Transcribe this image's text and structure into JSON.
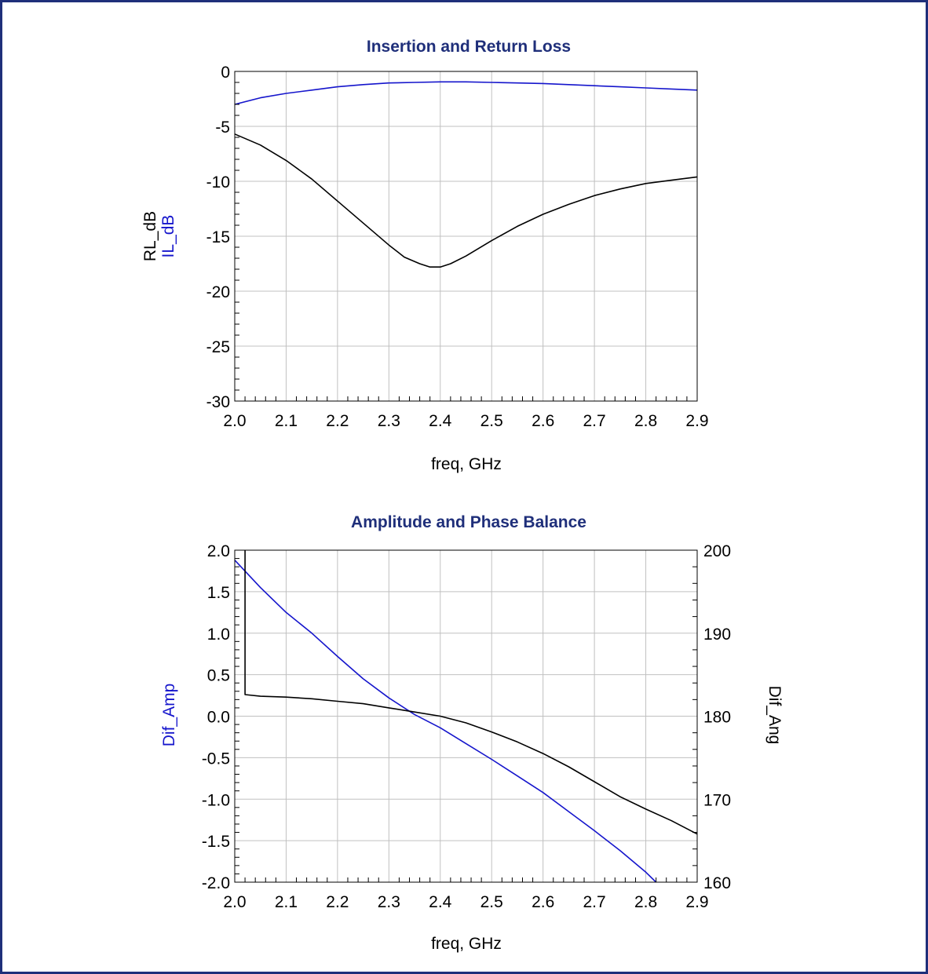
{
  "colors": {
    "frame": "#1f2f7a",
    "title": "#1f2f7a",
    "blue": "#1515cc",
    "black": "#000000",
    "grid": "#c0c0c0"
  },
  "chart_data": [
    {
      "type": "line",
      "title": "Insertion and Return Loss",
      "xlabel": "freq, GHz",
      "ylabels": [
        "RL_dB",
        "IL_dB"
      ],
      "xlim": [
        2.0,
        2.9
      ],
      "ylim": [
        -30,
        0
      ],
      "xticks": [
        "2.0",
        "2.1",
        "2.2",
        "2.3",
        "2.4",
        "2.5",
        "2.6",
        "2.7",
        "2.8",
        "2.9"
      ],
      "yticks": [
        "0",
        "-5",
        "-10",
        "-15",
        "-20",
        "-25",
        "-30"
      ],
      "grid": true,
      "series": [
        {
          "name": "IL_dB",
          "color": "#1515cc",
          "x": [
            2.0,
            2.05,
            2.1,
            2.15,
            2.2,
            2.25,
            2.3,
            2.35,
            2.4,
            2.45,
            2.5,
            2.55,
            2.6,
            2.65,
            2.7,
            2.75,
            2.8,
            2.85,
            2.9
          ],
          "y": [
            -3.0,
            -2.4,
            -2.0,
            -1.7,
            -1.4,
            -1.2,
            -1.05,
            -1.0,
            -0.95,
            -0.95,
            -1.0,
            -1.05,
            -1.1,
            -1.2,
            -1.3,
            -1.4,
            -1.5,
            -1.6,
            -1.7
          ]
        },
        {
          "name": "RL_dB",
          "color": "#000000",
          "x": [
            2.0,
            2.05,
            2.1,
            2.15,
            2.2,
            2.25,
            2.3,
            2.33,
            2.36,
            2.38,
            2.4,
            2.42,
            2.45,
            2.5,
            2.55,
            2.6,
            2.65,
            2.7,
            2.75,
            2.8,
            2.85,
            2.9
          ],
          "y": [
            -5.7,
            -6.7,
            -8.1,
            -9.8,
            -11.8,
            -13.8,
            -15.8,
            -16.9,
            -17.5,
            -17.8,
            -17.8,
            -17.5,
            -16.8,
            -15.4,
            -14.1,
            -13.0,
            -12.1,
            -11.3,
            -10.7,
            -10.2,
            -9.9,
            -9.6
          ]
        }
      ]
    },
    {
      "type": "line",
      "title": "Amplitude and Phase Balance",
      "xlabel": "freq, GHz",
      "ylabel_left": "Dif_Amp",
      "ylabel_right": "Dif_Ang",
      "xlim": [
        2.0,
        2.9
      ],
      "ylim_left": [
        -2.0,
        2.0
      ],
      "ylim_right": [
        160,
        200
      ],
      "xticks": [
        "2.0",
        "2.1",
        "2.2",
        "2.3",
        "2.4",
        "2.5",
        "2.6",
        "2.7",
        "2.8",
        "2.9"
      ],
      "yticks_left": [
        "2.0",
        "1.5",
        "1.0",
        "0.5",
        "0.0",
        "-0.5",
        "-1.0",
        "-1.5",
        "-2.0"
      ],
      "yticks_right": [
        "200",
        "190",
        "180",
        "170",
        "160"
      ],
      "grid": true,
      "series": [
        {
          "name": "Dif_Amp",
          "axis": "left",
          "color": "#1515cc",
          "x": [
            2.0,
            2.05,
            2.1,
            2.15,
            2.2,
            2.25,
            2.3,
            2.35,
            2.4,
            2.45,
            2.5,
            2.55,
            2.6,
            2.65,
            2.7,
            2.75,
            2.8,
            2.82
          ],
          "y": [
            1.88,
            1.55,
            1.25,
            1.0,
            0.72,
            0.45,
            0.22,
            0.02,
            -0.14,
            -0.33,
            -0.52,
            -0.72,
            -0.92,
            -1.15,
            -1.38,
            -1.62,
            -1.88,
            -2.0
          ]
        },
        {
          "name": "Dif_Ang",
          "axis": "right",
          "color": "#000000",
          "x": [
            2.02,
            2.02,
            2.05,
            2.1,
            2.15,
            2.2,
            2.25,
            2.3,
            2.35,
            2.4,
            2.45,
            2.5,
            2.55,
            2.6,
            2.65,
            2.7,
            2.75,
            2.8,
            2.85,
            2.9
          ],
          "y": [
            200,
            182.6,
            182.4,
            182.3,
            182.1,
            181.8,
            181.5,
            181.0,
            180.5,
            180.0,
            179.2,
            178.1,
            176.9,
            175.5,
            173.9,
            172.1,
            170.3,
            168.8,
            167.4,
            165.8
          ]
        }
      ]
    }
  ]
}
